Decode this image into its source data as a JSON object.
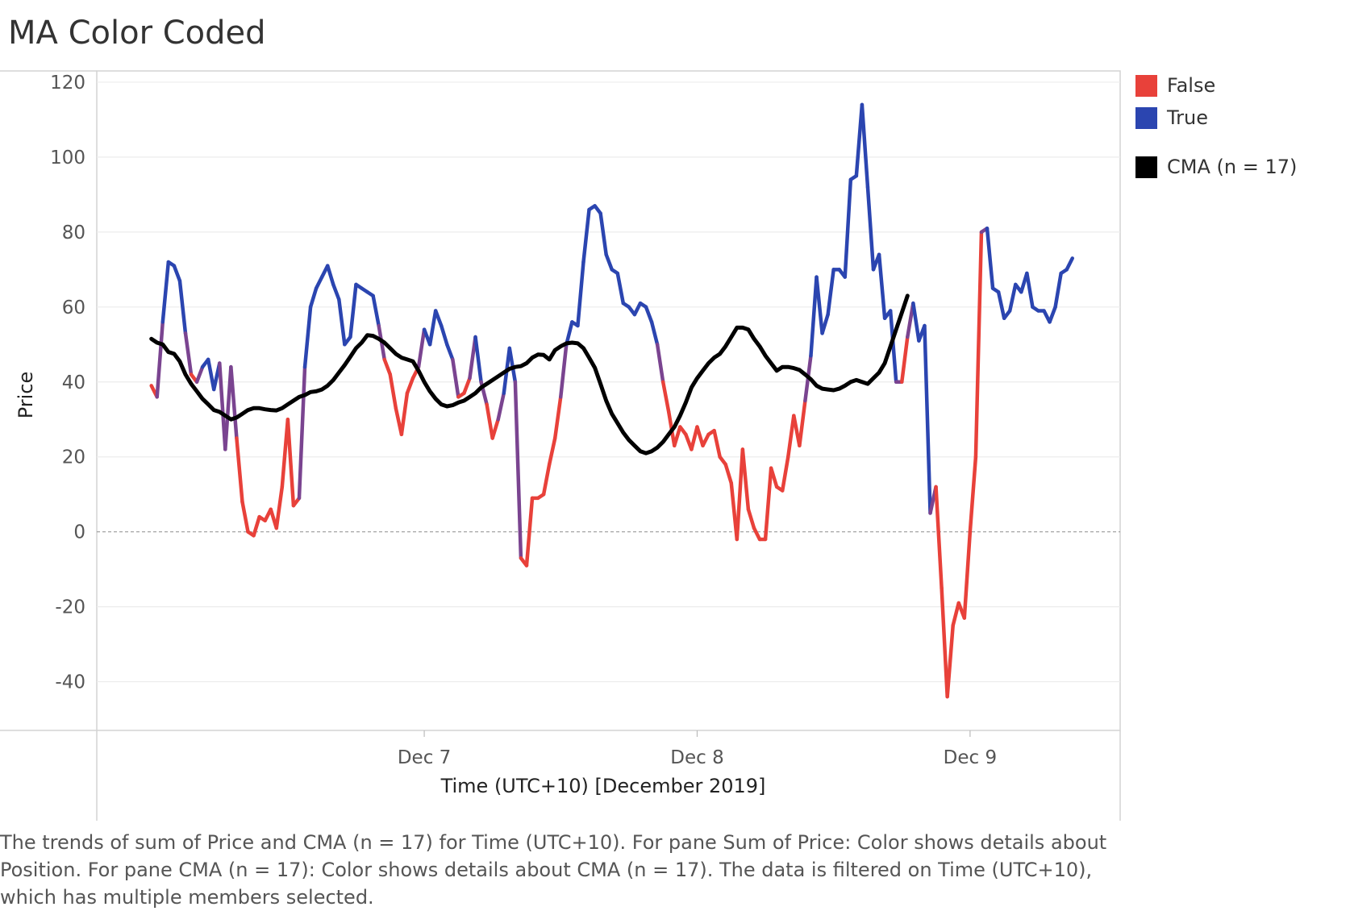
{
  "title": "MA Color Coded",
  "caption": "The trends of sum of Price and CMA (n = 17) for Time (UTC+10).  For pane Sum of Price:  Color shows details about Position.  For pane CMA (n = 17):  Color shows details about CMA (n = 17). The data is filtered on Time (UTC+10), which has multiple members selected.",
  "legend": {
    "items": [
      {
        "label": "False",
        "color": "#e8413a"
      },
      {
        "label": "True",
        "color": "#2b45b0"
      },
      {
        "label": "CMA (n = 17)",
        "color": "#000000"
      }
    ]
  },
  "chart_data": {
    "type": "line",
    "title": "MA Color Coded",
    "xlabel": "Time (UTC+10) [December 2019]",
    "ylabel": "Price",
    "ylim": [
      -53,
      123
    ],
    "yticks": [
      120,
      100,
      80,
      60,
      40,
      20,
      0,
      -20,
      -40
    ],
    "x_range_days": [
      5.8,
      9.55
    ],
    "x_ticks": [
      {
        "label": "Dec 7",
        "day": 7
      },
      {
        "label": "Dec 8",
        "day": 8
      },
      {
        "label": "Dec 9",
        "day": 9
      }
    ],
    "x_unit": "day of December 2019",
    "color_field": "Position",
    "grid": true,
    "zero_line": "dashed",
    "legend_position": "right",
    "series": [
      {
        "name": "Price",
        "x_start_day": 6.0,
        "x_step_days": 0.020833,
        "colors": {
          "False": "#e8413a",
          "True": "#2b45b0"
        },
        "values": [
          39,
          36,
          56,
          72,
          71,
          67,
          53,
          42,
          40,
          44,
          46,
          38,
          45,
          22,
          44,
          25,
          8,
          0,
          -1,
          4,
          3,
          6,
          1,
          12,
          30,
          7,
          9,
          44,
          60,
          65,
          68,
          71,
          66,
          62,
          50,
          52,
          66,
          65,
          64,
          63,
          55,
          46,
          42,
          33,
          26,
          37,
          41,
          44,
          54,
          50,
          59,
          55,
          50,
          46,
          36,
          37,
          41,
          52,
          40,
          34,
          25,
          30,
          37,
          49,
          40,
          -7,
          -9,
          9,
          9,
          10,
          18,
          25,
          36,
          50,
          56,
          55,
          72,
          86,
          87,
          85,
          74,
          70,
          69,
          61,
          60,
          58,
          61,
          60,
          56,
          50,
          40,
          32,
          23,
          28,
          26,
          22,
          28,
          23,
          26,
          27,
          20,
          18,
          13,
          -2,
          22,
          6,
          1,
          -2,
          -2,
          17,
          12,
          11,
          20,
          31,
          23,
          35,
          47,
          68,
          53,
          58,
          70,
          70,
          68,
          94,
          95,
          114,
          92,
          70,
          74,
          57,
          59,
          40,
          40,
          52,
          61,
          51,
          55,
          5,
          12,
          -15,
          -44,
          -25,
          -19,
          -23,
          0,
          20,
          80,
          81,
          65,
          64,
          57,
          59,
          66,
          64,
          69,
          60,
          59,
          59,
          56,
          60,
          69,
          70,
          73
        ],
        "position": [
          false,
          false,
          true,
          true,
          true,
          true,
          true,
          false,
          false,
          true,
          true,
          true,
          true,
          false,
          true,
          false,
          false,
          false,
          false,
          false,
          false,
          false,
          false,
          false,
          false,
          false,
          false,
          true,
          true,
          true,
          true,
          true,
          true,
          true,
          true,
          true,
          true,
          true,
          true,
          true,
          true,
          false,
          false,
          false,
          false,
          false,
          false,
          false,
          true,
          true,
          true,
          true,
          true,
          true,
          false,
          false,
          false,
          true,
          true,
          false,
          false,
          false,
          true,
          true,
          true,
          false,
          false,
          false,
          false,
          false,
          false,
          false,
          false,
          true,
          true,
          true,
          true,
          true,
          true,
          true,
          true,
          true,
          true,
          true,
          true,
          true,
          true,
          true,
          true,
          true,
          false,
          false,
          false,
          false,
          false,
          false,
          false,
          false,
          false,
          false,
          false,
          false,
          false,
          false,
          false,
          false,
          false,
          false,
          false,
          false,
          false,
          false,
          false,
          false,
          false,
          false,
          true,
          true,
          true,
          true,
          true,
          true,
          true,
          true,
          true,
          true,
          true,
          true,
          true,
          true,
          true,
          true,
          false,
          false,
          true,
          true,
          true,
          true,
          false,
          false,
          false,
          false,
          false,
          false,
          false,
          false,
          false,
          true,
          true,
          true,
          true,
          true,
          true,
          true,
          true,
          true,
          true,
          true,
          true,
          true,
          true,
          true,
          true,
          true
        ]
      },
      {
        "name": "CMA (n = 17)",
        "color": "#000000",
        "x_start_day": 6.0,
        "x_step_days": 0.020833,
        "values": [
          51.5,
          50.5,
          50,
          48,
          47.5,
          45.5,
          42,
          39.5,
          37.5,
          35.5,
          34,
          32.5,
          32,
          31,
          30,
          30.5,
          31.5,
          32.5,
          33,
          33,
          32.7,
          32.5,
          32.4,
          33,
          34,
          35,
          36,
          36.5,
          37.3,
          37.5,
          38,
          39,
          40.5,
          42.5,
          44.5,
          46.7,
          49,
          50.5,
          52.5,
          52.3,
          51.5,
          50.5,
          49,
          47.5,
          46.5,
          46,
          45.5,
          43,
          40,
          37.5,
          35.5,
          34,
          33.5,
          33.8,
          34.5,
          35,
          36,
          37,
          38.5,
          39.5,
          40.5,
          41.5,
          42.5,
          43.5,
          44,
          44.2,
          45,
          46.5,
          47.3,
          47.2,
          46,
          48.5,
          49.5,
          50.3,
          50.5,
          50.3,
          49,
          46.5,
          43.8,
          39.5,
          35,
          31.5,
          29,
          26.5,
          24.5,
          23,
          21.5,
          21,
          21.5,
          22.5,
          24,
          26,
          28,
          31,
          34.5,
          38.5,
          41,
          43,
          45,
          46.5,
          47.5,
          49.5,
          52,
          54.5,
          54.5,
          54,
          51.5,
          49.5,
          47,
          45,
          43,
          44,
          44,
          43.7,
          43.2,
          42,
          40.7,
          39,
          38.2,
          38,
          37.8,
          38.2,
          39,
          40,
          40.5,
          40,
          39.5,
          41,
          42.5,
          45,
          49.5,
          54,
          58.5,
          63
        ]
      }
    ]
  }
}
